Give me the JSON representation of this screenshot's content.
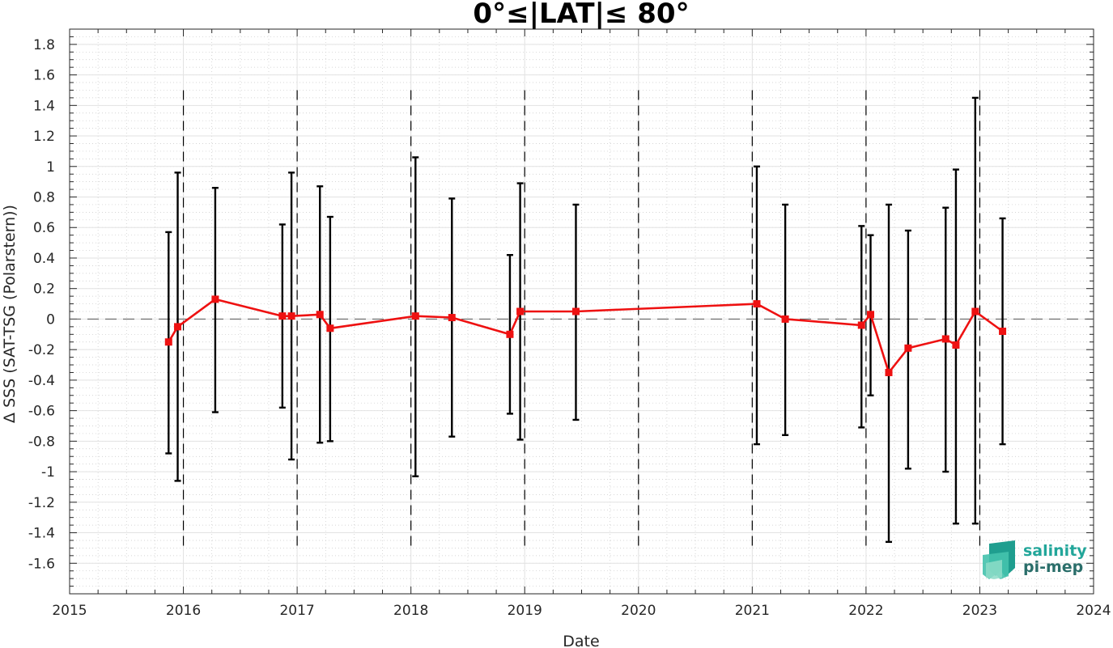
{
  "chart_data": {
    "type": "line",
    "title": "0°≤|LAT|≤ 80°",
    "xlabel": "Date",
    "ylabel": "Δ SSS (SAT-TSG (Polarstern))",
    "xlim": [
      2015,
      2024
    ],
    "ylim": [
      -1.8,
      1.9
    ],
    "x_ticks": [
      "2015",
      "2016",
      "2017",
      "2018",
      "2019",
      "2020",
      "2021",
      "2022",
      "2023",
      "2024"
    ],
    "y_ticks": [
      "1.8",
      "1.6",
      "1.4",
      "1.2",
      "1",
      "0.8",
      "0.6",
      "0.4",
      "0.2",
      "0",
      "-0.2",
      "-0.4",
      "-0.6",
      "-0.8",
      "-1",
      "-1.2",
      "-1.4",
      "-1.6"
    ],
    "y_tick_values": [
      1.8,
      1.6,
      1.4,
      1.2,
      1,
      0.8,
      0.6,
      0.4,
      0.2,
      0,
      -0.2,
      -0.4,
      -0.6,
      -0.8,
      -1,
      -1.2,
      -1.4,
      -1.6
    ],
    "grid": true,
    "vertical_dashed_lines": [
      2016,
      2017,
      2018,
      2019,
      2020,
      2021,
      2022,
      2023
    ],
    "zero_line": 0,
    "series": [
      {
        "color": "#ee1111",
        "points": [
          {
            "x": 2015.87,
            "y": -0.15,
            "low": -0.88,
            "high": 0.57
          },
          {
            "x": 2015.95,
            "y": -0.05,
            "low": -1.06,
            "high": 0.96
          },
          {
            "x": 2016.28,
            "y": 0.13,
            "low": -0.61,
            "high": 0.86
          },
          {
            "x": 2016.87,
            "y": 0.02,
            "low": -0.58,
            "high": 0.62
          },
          {
            "x": 2016.95,
            "y": 0.02,
            "low": -0.92,
            "high": 0.96
          },
          {
            "x": 2017.2,
            "y": 0.03,
            "low": -0.81,
            "high": 0.87
          },
          {
            "x": 2017.29,
            "y": -0.06,
            "low": -0.8,
            "high": 0.67
          },
          {
            "x": 2018.04,
            "y": 0.02,
            "low": -1.03,
            "high": 1.06
          },
          {
            "x": 2018.36,
            "y": 0.01,
            "low": -0.77,
            "high": 0.79
          },
          {
            "x": 2018.87,
            "y": -0.1,
            "low": -0.62,
            "high": 0.42
          },
          {
            "x": 2018.96,
            "y": 0.05,
            "low": -0.79,
            "high": 0.89
          },
          {
            "x": 2019.45,
            "y": 0.05,
            "low": -0.66,
            "high": 0.75
          },
          {
            "x": 2021.04,
            "y": 0.1,
            "low": -0.82,
            "high": 1.0
          },
          {
            "x": 2021.29,
            "y": 0.0,
            "low": -0.76,
            "high": 0.75
          },
          {
            "x": 2021.96,
            "y": -0.04,
            "low": -0.71,
            "high": 0.61
          },
          {
            "x": 2022.04,
            "y": 0.03,
            "low": -0.5,
            "high": 0.55
          },
          {
            "x": 2022.2,
            "y": -0.35,
            "low": -1.46,
            "high": 0.75
          },
          {
            "x": 2022.37,
            "y": -0.19,
            "low": -0.98,
            "high": 0.58
          },
          {
            "x": 2022.7,
            "y": -0.13,
            "low": -1.0,
            "high": 0.73
          },
          {
            "x": 2022.79,
            "y": -0.17,
            "low": -1.34,
            "high": 0.98
          },
          {
            "x": 2022.96,
            "y": 0.05,
            "low": -1.34,
            "high": 1.45
          },
          {
            "x": 2023.2,
            "y": -0.08,
            "low": -0.82,
            "high": 0.66
          }
        ]
      }
    ]
  },
  "logo": {
    "line1": "salinity",
    "line2": "pi-mep",
    "color1": "#22a69a",
    "color2": "#2a6e6a"
  }
}
